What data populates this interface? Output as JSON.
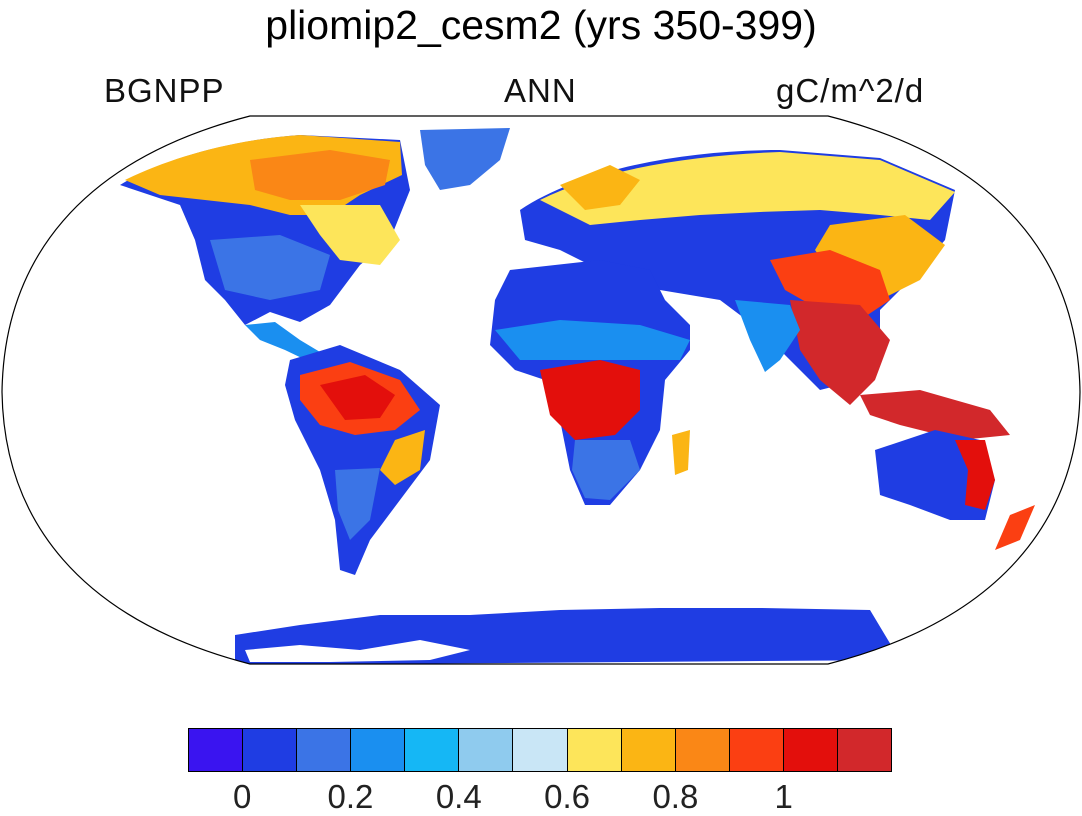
{
  "title": "pliomip2_cesm2 (yrs 350-399)",
  "variable_label": "BGNPP",
  "season_label": "ANN",
  "units_label": "gC/m^2/d",
  "colorbar": {
    "colors": [
      "#3a14f0",
      "#1f3de3",
      "#3b74e6",
      "#1a8ff0",
      "#15b7f5",
      "#8fcbee",
      "#c9e6f6",
      "#fde55a",
      "#fbb514",
      "#fa8716",
      "#fb3f12",
      "#e30f0c",
      "#d2282b"
    ],
    "tick_labels": [
      "0",
      "0.2",
      "0.4",
      "0.6",
      "0.8",
      "1"
    ]
  },
  "map_colors": {
    "ocean": "#ffffff",
    "very_low": "#1f3de3",
    "low": "#3b74e6",
    "mid_low": "#1a8ff0",
    "mid": "#fde55a",
    "mid_high": "#fbb514",
    "high": "#fa8716",
    "very_high": "#e30f0c"
  }
}
